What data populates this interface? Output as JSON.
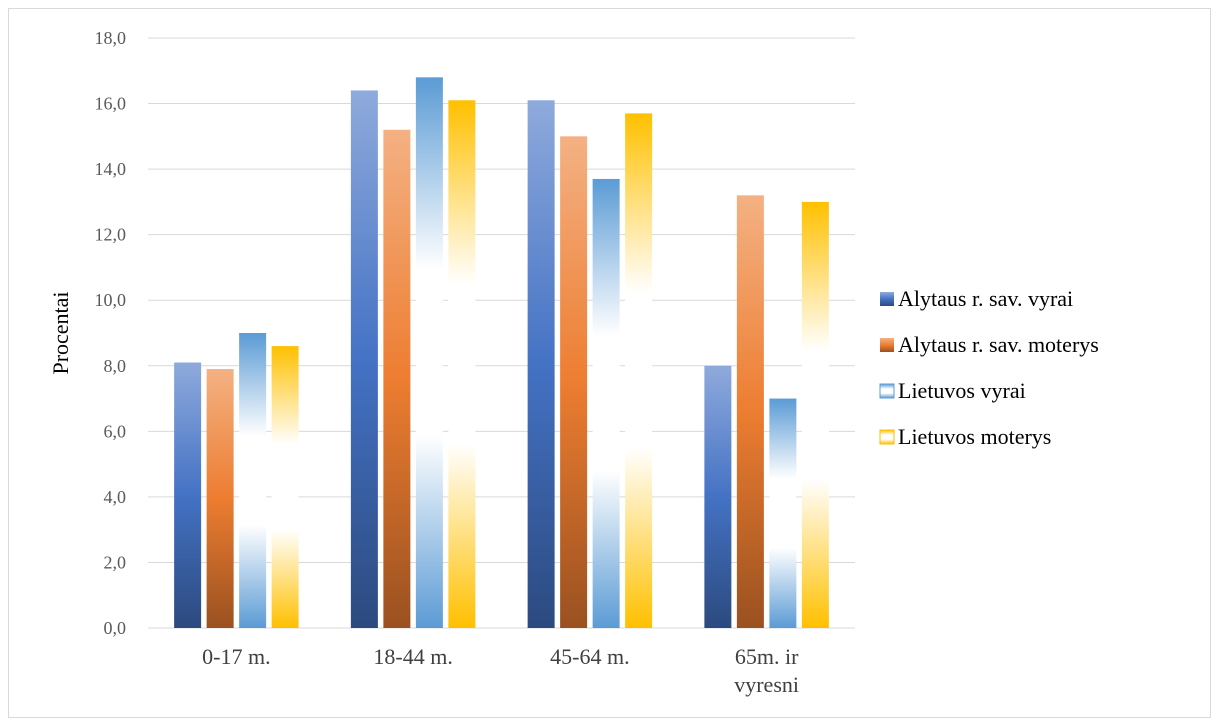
{
  "chart_data": {
    "type": "bar",
    "title": "",
    "xlabel": "",
    "ylabel": "Procentai",
    "ylim": [
      0,
      18
    ],
    "yticks": [
      "0,0",
      "2,0",
      "4,0",
      "6,0",
      "8,0",
      "10,0",
      "12,0",
      "14,0",
      "16,0",
      "18,0"
    ],
    "grid": true,
    "legend_position": "right",
    "categories": [
      [
        "0-17 m."
      ],
      [
        "18-44 m."
      ],
      [
        "45-64 m."
      ],
      [
        "65m. ir",
        "vyresni"
      ]
    ],
    "series": [
      {
        "name": "Alytaus r. sav. vyrai",
        "values": [
          8.1,
          16.4,
          16.1,
          8.0
        ],
        "color": "#4472c4"
      },
      {
        "name": "Alytaus r. sav. moterys",
        "values": [
          7.9,
          15.2,
          15.0,
          13.2
        ],
        "color": "#ed7d31"
      },
      {
        "name": "Lietuvos vyrai",
        "values": [
          9.0,
          16.8,
          13.7,
          7.0
        ],
        "color": "#5b9bd5"
      },
      {
        "name": "Lietuvos moterys",
        "values": [
          8.6,
          16.1,
          15.7,
          13.0
        ],
        "color": "#ffc000"
      }
    ]
  }
}
